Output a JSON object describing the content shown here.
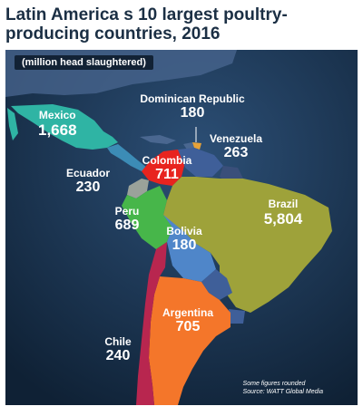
{
  "title": "Latin America s 10 largest poultry-producing countries, 2016",
  "subtitle": "(million head slaughtered)",
  "countries": [
    {
      "name": "Mexico",
      "value": "1,668",
      "color": "#2fb4a4"
    },
    {
      "name": "Dominican Republic",
      "value": "180",
      "color": "#e7a238"
    },
    {
      "name": "Venezuela",
      "value": "263",
      "color": "#3f5f99"
    },
    {
      "name": "Colombia",
      "value": "711",
      "color": "#e8241f"
    },
    {
      "name": "Ecuador",
      "value": "230",
      "color": "#9aa29a"
    },
    {
      "name": "Peru",
      "value": "689",
      "color": "#47b64a"
    },
    {
      "name": "Brazil",
      "value": "5,804",
      "color": "#9ea23a"
    },
    {
      "name": "Bolivia",
      "value": "180",
      "color": "#4f86c9"
    },
    {
      "name": "Argentina",
      "value": "705",
      "color": "#f4762a"
    },
    {
      "name": "Chile",
      "value": "240",
      "color": "#b8264f"
    }
  ],
  "note": [
    "Some figures rounded",
    "Source: WATT Global Media"
  ]
}
